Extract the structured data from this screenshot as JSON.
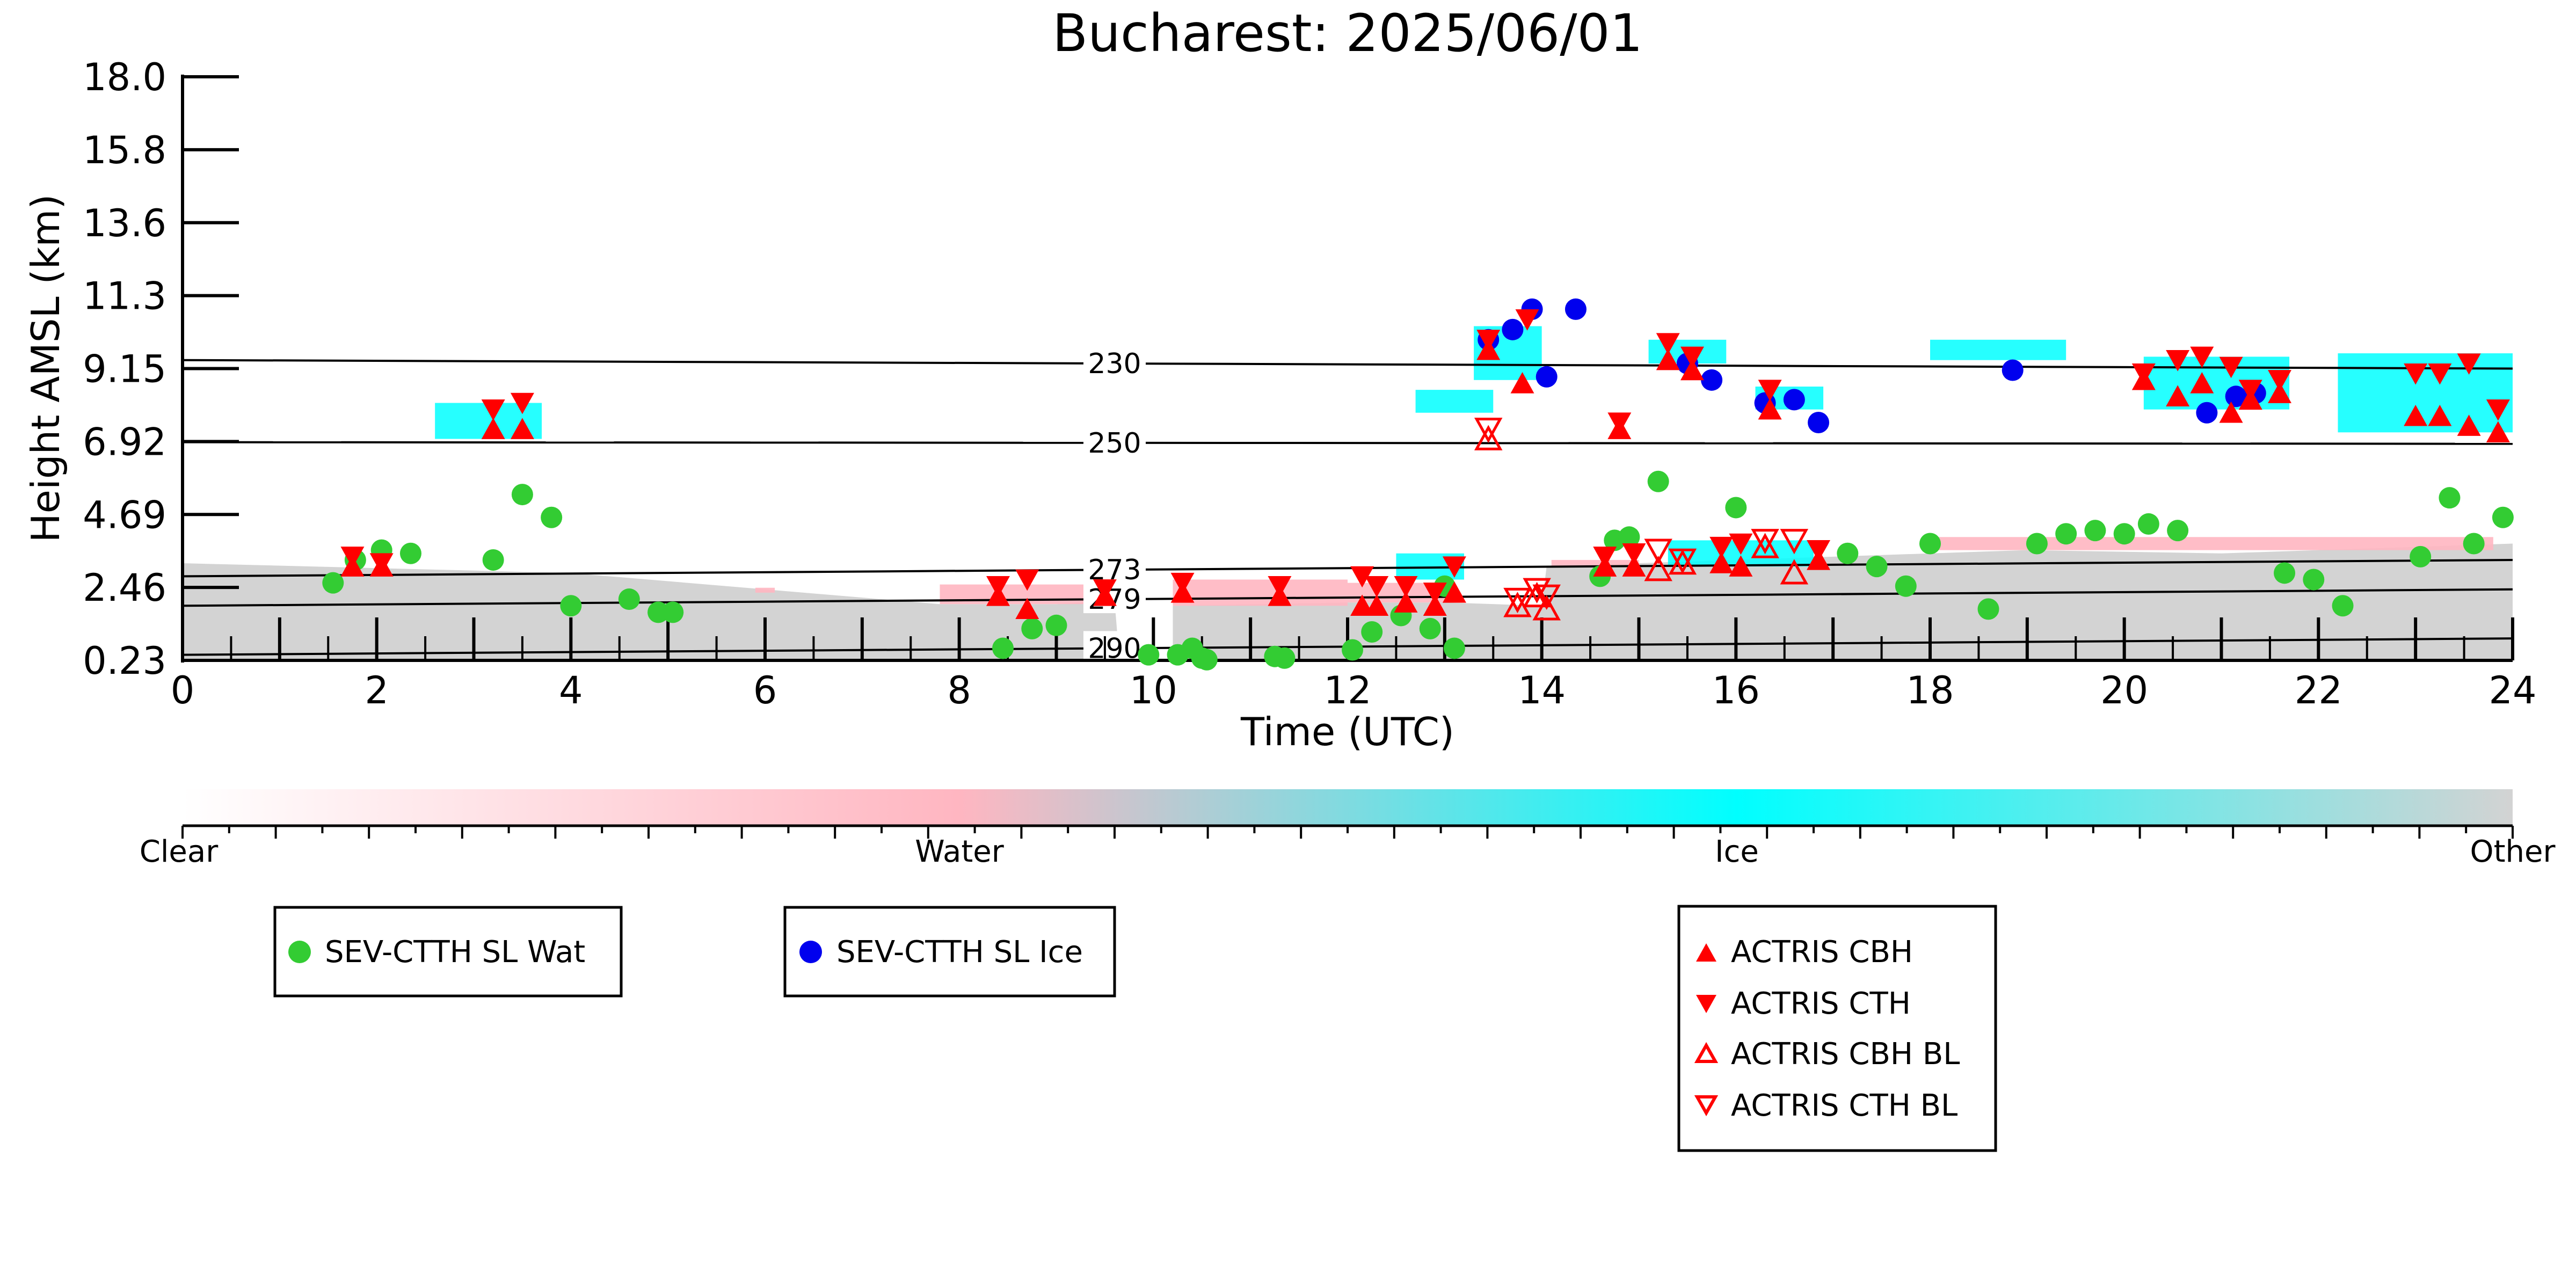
{
  "chart_data": {
    "type": "scatter",
    "title": "Bucharest: 2025/06/01",
    "xlabel": "Time (UTC)",
    "ylabel": "Height AMSL (km)",
    "xlim": [
      0,
      24
    ],
    "ylim": [
      0.23,
      18.0
    ],
    "x_ticks": [
      "0",
      "2",
      "4",
      "6",
      "8",
      "10",
      "12",
      "14",
      "16",
      "18",
      "20",
      "22",
      "24"
    ],
    "y_ticks": [
      "0.23",
      "2.46",
      "4.69",
      "6.92",
      "9.15",
      "11.3",
      "13.6",
      "15.8",
      "18.0"
    ],
    "colorbar": {
      "labels": [
        "Clear",
        "Water",
        "Ice",
        "Other"
      ],
      "colors": [
        "#ffffff",
        "#ffb6c1",
        "#00ffff",
        "#d3d3d3"
      ]
    },
    "isotherms": [
      {
        "label": "230",
        "start": 9.4,
        "end": 9.15
      },
      {
        "label": "250",
        "start": 6.9,
        "end": 6.85
      },
      {
        "label": "273",
        "start": 2.8,
        "end": 3.3
      },
      {
        "label": "279",
        "start": 1.9,
        "end": 2.4
      },
      {
        "label": "290",
        "start": 0.4,
        "end": 0.9
      }
    ],
    "background": {
      "water_color": "#ffb6c1",
      "ice_color": "#00ffff",
      "other_color": "#d3d3d3"
    },
    "series": [
      {
        "name": "SEV-CTTH SL Wat",
        "color": "#33cc33",
        "marker": "circle",
        "points": [
          [
            1.55,
            2.6
          ],
          [
            1.78,
            3.3
          ],
          [
            2.05,
            3.6
          ],
          [
            2.35,
            3.5
          ],
          [
            3.2,
            3.3
          ],
          [
            3.5,
            5.3
          ],
          [
            3.8,
            4.6
          ],
          [
            4.0,
            1.9
          ],
          [
            4.6,
            2.1
          ],
          [
            4.9,
            1.7
          ],
          [
            5.05,
            1.7
          ],
          [
            8.45,
            0.6
          ],
          [
            8.75,
            1.2
          ],
          [
            9.0,
            1.3
          ],
          [
            9.95,
            0.4
          ],
          [
            10.25,
            0.4
          ],
          [
            10.4,
            0.6
          ],
          [
            10.5,
            0.3
          ],
          [
            10.55,
            0.25
          ],
          [
            11.25,
            0.35
          ],
          [
            11.35,
            0.3
          ],
          [
            12.05,
            0.55
          ],
          [
            12.25,
            1.1
          ],
          [
            12.55,
            1.6
          ],
          [
            12.85,
            1.2
          ],
          [
            13.0,
            2.5
          ],
          [
            13.1,
            0.6
          ],
          [
            14.6,
            2.8
          ],
          [
            14.75,
            3.9
          ],
          [
            14.9,
            4.0
          ],
          [
            15.2,
            5.7
          ],
          [
            16.0,
            4.9
          ],
          [
            17.15,
            3.5
          ],
          [
            17.45,
            3.1
          ],
          [
            17.75,
            2.5
          ],
          [
            18.0,
            3.8
          ],
          [
            18.6,
            1.8
          ],
          [
            19.1,
            3.8
          ],
          [
            19.4,
            4.1
          ],
          [
            19.7,
            4.2
          ],
          [
            20.0,
            4.1
          ],
          [
            20.25,
            4.4
          ],
          [
            20.55,
            4.2
          ],
          [
            21.65,
            2.9
          ],
          [
            21.95,
            2.7
          ],
          [
            22.25,
            1.9
          ],
          [
            23.05,
            3.4
          ],
          [
            23.35,
            5.2
          ],
          [
            23.6,
            3.8
          ],
          [
            23.9,
            4.6
          ]
        ]
      },
      {
        "name": "SEV-CTTH SL Ice",
        "color": "#0000ee",
        "marker": "circle",
        "points": [
          [
            13.45,
            10.0
          ],
          [
            13.7,
            10.3
          ],
          [
            13.9,
            10.9
          ],
          [
            14.05,
            8.9
          ],
          [
            14.35,
            10.9
          ],
          [
            15.5,
            9.3
          ],
          [
            15.75,
            8.8
          ],
          [
            16.3,
            8.1
          ],
          [
            16.6,
            8.2
          ],
          [
            16.85,
            7.5
          ],
          [
            18.85,
            9.1
          ],
          [
            20.85,
            7.8
          ],
          [
            21.15,
            8.3
          ],
          [
            21.35,
            8.4
          ]
        ]
      },
      {
        "name": "ACTRIS CBH",
        "color": "#ff0000",
        "marker": "triangle-up",
        "points": [
          [
            1.75,
            3.1
          ],
          [
            2.05,
            3.1
          ],
          [
            3.2,
            7.3
          ],
          [
            3.5,
            7.3
          ],
          [
            8.4,
            2.2
          ],
          [
            8.7,
            1.8
          ],
          [
            9.5,
            2.2
          ],
          [
            10.3,
            2.3
          ],
          [
            11.3,
            2.2
          ],
          [
            12.15,
            1.9
          ],
          [
            12.3,
            1.9
          ],
          [
            12.6,
            2.0
          ],
          [
            12.9,
            1.9
          ],
          [
            13.1,
            2.3
          ],
          [
            13.45,
            9.7
          ],
          [
            13.8,
            8.7
          ],
          [
            14.8,
            7.3
          ],
          [
            14.65,
            3.1
          ],
          [
            14.95,
            3.1
          ],
          [
            15.3,
            9.4
          ],
          [
            15.55,
            9.1
          ],
          [
            15.85,
            3.2
          ],
          [
            16.05,
            3.1
          ],
          [
            16.35,
            7.9
          ],
          [
            16.85,
            3.3
          ],
          [
            20.2,
            8.8
          ],
          [
            20.55,
            8.3
          ],
          [
            20.8,
            8.7
          ],
          [
            21.1,
            7.8
          ],
          [
            21.3,
            8.2
          ],
          [
            21.6,
            8.4
          ],
          [
            23.0,
            7.7
          ],
          [
            23.25,
            7.7
          ],
          [
            23.55,
            7.4
          ],
          [
            23.85,
            7.2
          ]
        ]
      },
      {
        "name": "ACTRIS CTH",
        "color": "#ff0000",
        "marker": "triangle-down",
        "points": [
          [
            1.75,
            3.4
          ],
          [
            2.05,
            3.2
          ],
          [
            3.2,
            7.9
          ],
          [
            3.5,
            8.1
          ],
          [
            8.4,
            2.5
          ],
          [
            8.7,
            2.7
          ],
          [
            9.5,
            2.4
          ],
          [
            10.3,
            2.6
          ],
          [
            11.3,
            2.5
          ],
          [
            12.15,
            2.8
          ],
          [
            12.3,
            2.5
          ],
          [
            12.6,
            2.5
          ],
          [
            12.9,
            2.3
          ],
          [
            13.1,
            3.1
          ],
          [
            13.45,
            10.0
          ],
          [
            13.85,
            10.6
          ],
          [
            14.8,
            7.5
          ],
          [
            14.65,
            3.4
          ],
          [
            14.95,
            3.5
          ],
          [
            15.3,
            9.9
          ],
          [
            15.55,
            9.5
          ],
          [
            15.85,
            3.7
          ],
          [
            16.05,
            3.8
          ],
          [
            16.35,
            8.5
          ],
          [
            16.85,
            3.6
          ],
          [
            20.2,
            9.0
          ],
          [
            20.55,
            9.4
          ],
          [
            20.8,
            9.5
          ],
          [
            21.1,
            9.2
          ],
          [
            21.3,
            8.5
          ],
          [
            21.6,
            8.8
          ],
          [
            23.0,
            9.0
          ],
          [
            23.25,
            9.0
          ],
          [
            23.55,
            9.3
          ],
          [
            23.85,
            7.9
          ]
        ]
      },
      {
        "name": "ACTRIS CBH BL",
        "color": "#ff0000",
        "marker": "triangle-up-open",
        "points": [
          [
            13.45,
            7.0
          ],
          [
            13.75,
            1.9
          ],
          [
            13.95,
            2.2
          ],
          [
            14.05,
            1.8
          ],
          [
            15.2,
            3.0
          ],
          [
            15.45,
            3.2
          ],
          [
            16.3,
            3.7
          ],
          [
            16.6,
            2.9
          ]
        ]
      },
      {
        "name": "ACTRIS CTH BL",
        "color": "#ff0000",
        "marker": "triangle-down-open",
        "points": [
          [
            13.45,
            7.3
          ],
          [
            13.75,
            2.1
          ],
          [
            13.95,
            2.4
          ],
          [
            14.05,
            2.2
          ],
          [
            15.2,
            3.6
          ],
          [
            15.45,
            3.3
          ],
          [
            16.3,
            3.9
          ],
          [
            16.6,
            3.9
          ]
        ]
      }
    ],
    "legends": [
      {
        "entries": [
          "SEV-CTTH SL Wat"
        ]
      },
      {
        "entries": [
          "SEV-CTTH SL Ice"
        ]
      },
      {
        "entries": [
          "ACTRIS CBH",
          "ACTRIS CTH",
          "ACTRIS CBH BL",
          "ACTRIS CTH BL"
        ]
      }
    ]
  }
}
